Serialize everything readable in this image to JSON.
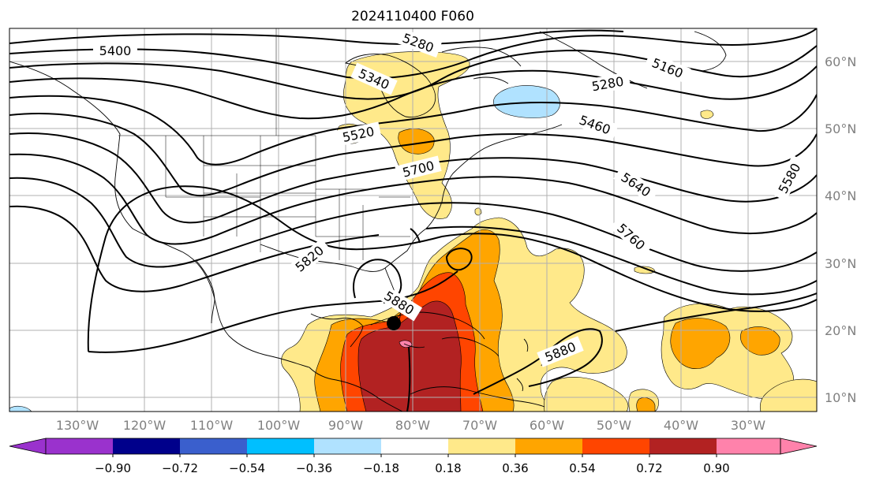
{
  "map": {
    "title": "2024110400 F060",
    "lon_labels": [
      "130°W",
      "120°W",
      "110°W",
      "100°W",
      "90°W",
      "80°W",
      "70°W",
      "60°W",
      "50°W",
      "40°W",
      "30°W"
    ],
    "lat_labels": [
      "60°N",
      "50°N",
      "40°N",
      "30°N",
      "20°N",
      "10°N"
    ],
    "contour_labels": [
      {
        "text": "5400",
        "key": "c1"
      },
      {
        "text": "5280",
        "key": "c2"
      },
      {
        "text": "5160",
        "key": "c3"
      },
      {
        "text": "5340",
        "key": "c4"
      },
      {
        "text": "5280",
        "key": "c5"
      },
      {
        "text": "5460",
        "key": "c6"
      },
      {
        "text": "5520",
        "key": "c7"
      },
      {
        "text": "5700",
        "key": "c8"
      },
      {
        "text": "5640",
        "key": "c9"
      },
      {
        "text": "5580",
        "key": "c10"
      },
      {
        "text": "5760",
        "key": "c11"
      },
      {
        "text": "5820",
        "key": "c12"
      },
      {
        "text": "5880",
        "key": "c13"
      },
      {
        "text": "5880",
        "key": "c14"
      }
    ],
    "marker": "storm-center-marker"
  },
  "colorbar": {
    "tick_labels": [
      "−0.90",
      "−0.72",
      "−0.54",
      "−0.36",
      "−0.18",
      "0.18",
      "0.36",
      "0.54",
      "0.72",
      "0.90"
    ],
    "colors": [
      "#9a32cd",
      "#00008b",
      "#3a5fcd",
      "#00bfff",
      "#b0e2ff",
      "#ffffff",
      "#ffe98a",
      "#ffa500",
      "#ff4500",
      "#b22222",
      "#ff82ab"
    ]
  }
}
